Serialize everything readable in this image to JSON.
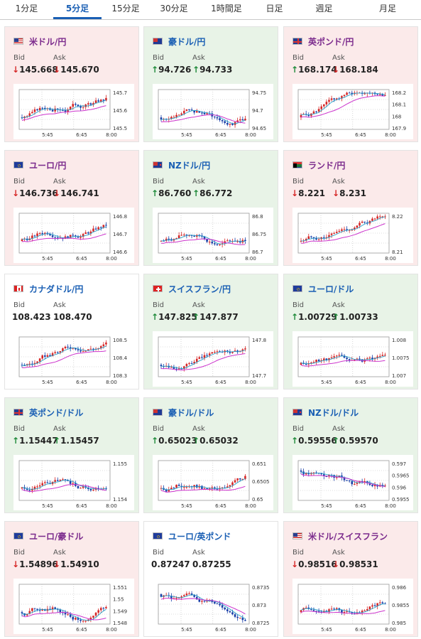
{
  "tabs": [
    "1分足",
    "5分足",
    "15分足",
    "30分足",
    "1時間足",
    "日足",
    "週足",
    "月足"
  ],
  "active_tab": "5分足",
  "labels": {
    "bid": "Bid",
    "ask": "Ask"
  },
  "colors": {
    "up": "#1f8a3a",
    "down": "#d62828",
    "candle_up": "#d62828",
    "candle_down": "#1a3fa8",
    "ma_short": "#2aa0c8",
    "ma_long": "#cc33cc"
  },
  "x_ticks": [
    "5:45",
    "6:45",
    "8:00"
  ],
  "cards": [
    {
      "name": "米ドル/円",
      "flag": "us",
      "state": "down",
      "bid": "145.668",
      "ask": "145.670",
      "bid_dir": "down",
      "ask_dir": "down",
      "yticks": [
        "145.7",
        "145.6",
        "145.5"
      ],
      "trend": "up"
    },
    {
      "name": "豪ドル/円",
      "flag": "au",
      "state": "up",
      "bid": "94.726",
      "ask": "94.733",
      "bid_dir": "up",
      "ask_dir": "up",
      "yticks": [
        "94.75",
        "94.7",
        "94.65"
      ],
      "trend": "mixed"
    },
    {
      "name": "英ポンド/円",
      "flag": "gb",
      "state": "down",
      "bid": "168.174",
      "ask": "168.184",
      "bid_dir": "up",
      "ask_dir": "down",
      "yticks": [
        "168.2",
        "168.1",
        "168",
        "167.9"
      ],
      "trend": "up"
    },
    {
      "name": "ユーロ/円",
      "flag": "eu",
      "state": "down",
      "bid": "146.736",
      "ask": "146.741",
      "bid_dir": "down",
      "ask_dir": "down",
      "yticks": [
        "146.8",
        "146.7",
        "146.6"
      ],
      "trend": "up"
    },
    {
      "name": "NZドル/円",
      "flag": "nz",
      "state": "up",
      "bid": "86.760",
      "ask": "86.772",
      "bid_dir": "up",
      "ask_dir": "up",
      "yticks": [
        "86.8",
        "86.75",
        "86.7"
      ],
      "trend": "mixed"
    },
    {
      "name": "ランド/円",
      "flag": "za",
      "state": "down",
      "bid": "8.221",
      "ask": "8.231",
      "bid_dir": "down",
      "ask_dir": "down",
      "yticks": [
        "8.22",
        "8.21"
      ],
      "trend": "up"
    },
    {
      "name": "カナダドル/円",
      "flag": "ca",
      "state": "flat",
      "bid": "108.423",
      "ask": "108.470",
      "bid_dir": "none",
      "ask_dir": "none",
      "yticks": [
        "108.5",
        "108.4",
        "108.3"
      ],
      "trend": "up"
    },
    {
      "name": "スイスフラン/円",
      "flag": "ch",
      "state": "up",
      "bid": "147.825",
      "ask": "147.877",
      "bid_dir": "up",
      "ask_dir": "up",
      "yticks": [
        "147.8",
        "147.7"
      ],
      "trend": "up"
    },
    {
      "name": "ユーロ/ドル",
      "flag": "eu",
      "state": "up",
      "bid": "1.00729",
      "ask": "1.00733",
      "bid_dir": "up",
      "ask_dir": "up",
      "yticks": [
        "1.008",
        "1.0075",
        "1.007"
      ],
      "trend": "mixed"
    },
    {
      "name": "英ポンド/ドル",
      "flag": "gb",
      "state": "up",
      "bid": "1.15447",
      "ask": "1.15457",
      "bid_dir": "up",
      "ask_dir": "up",
      "yticks": [
        "1.155",
        "1.154"
      ],
      "trend": "mixed"
    },
    {
      "name": "豪ドル/ドル",
      "flag": "au",
      "state": "up",
      "bid": "0.65023",
      "ask": "0.65032",
      "bid_dir": "up",
      "ask_dir": "up",
      "yticks": [
        "0.651",
        "0.6505",
        "0.65"
      ],
      "trend": "mixed"
    },
    {
      "name": "NZドル/ドル",
      "flag": "nz",
      "state": "up",
      "bid": "0.59556",
      "ask": "0.59570",
      "bid_dir": "up",
      "ask_dir": "up",
      "yticks": [
        "0.597",
        "0.5965",
        "0.596",
        "0.5955"
      ],
      "trend": "down"
    },
    {
      "name": "ユーロ/豪ドル",
      "flag": "eu",
      "state": "down",
      "bid": "1.54896",
      "ask": "1.54910",
      "bid_dir": "down",
      "ask_dir": "down",
      "yticks": [
        "1.551",
        "1.55",
        "1.549",
        "1.548"
      ],
      "trend": "mixed"
    },
    {
      "name": "ユーロ/英ポンド",
      "flag": "eu",
      "state": "flat",
      "bid": "0.87247",
      "ask": "0.87255",
      "bid_dir": "none",
      "ask_dir": "none",
      "yticks": [
        "0.8735",
        "0.873",
        "0.8725"
      ],
      "trend": "down"
    },
    {
      "name": "米ドル/スイスフラン",
      "flag": "us",
      "state": "down",
      "bid": "0.98516",
      "ask": "0.98531",
      "bid_dir": "down",
      "ask_dir": "down",
      "yticks": [
        "0.986",
        "0.9855",
        "0.985"
      ],
      "trend": "mixed"
    }
  ]
}
